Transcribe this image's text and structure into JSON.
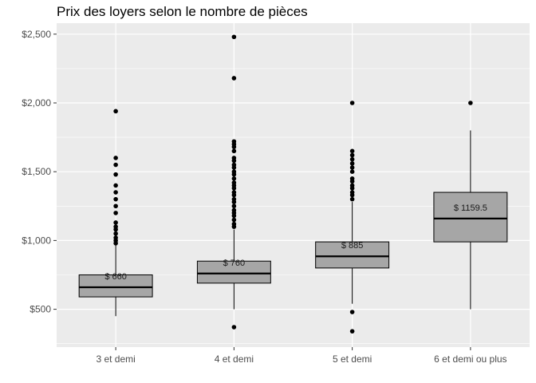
{
  "chart_data": {
    "type": "boxplot",
    "title": "Prix des loyers selon le nombre de pièces",
    "xlabel": "",
    "ylabel": "",
    "ylim": [
      225,
      2580
    ],
    "y_ticks": [
      500,
      1000,
      1500,
      2000,
      2500
    ],
    "y_tick_labels": [
      "$500",
      "$1,000",
      "$1,500",
      "$2,000",
      "$2,500"
    ],
    "grid": true,
    "box_fill": "#a6a6a6",
    "panel_background": "#ebebeb",
    "categories": [
      "3 et demi",
      "4 et demi",
      "5 et demi",
      "6 et demi ou plus"
    ],
    "boxes": [
      {
        "label": "$ 660",
        "q1": 590,
        "median": 660,
        "q3": 750,
        "whisker_low": 450,
        "whisker_high": 970,
        "outliers": [
          980,
          1000,
          1020,
          1050,
          1080,
          1100,
          1130,
          1200,
          1250,
          1300,
          1350,
          1400,
          1480,
          1550,
          1600,
          1940
        ]
      },
      {
        "label": "$ 760",
        "q1": 690,
        "median": 760,
        "q3": 850,
        "whisker_low": 500,
        "whisker_high": 1080,
        "outliers": [
          370,
          1100,
          1120,
          1150,
          1180,
          1200,
          1220,
          1250,
          1280,
          1300,
          1330,
          1350,
          1380,
          1400,
          1420,
          1450,
          1480,
          1500,
          1530,
          1550,
          1580,
          1600,
          1650,
          1680,
          1700,
          1720,
          2180,
          2480
        ]
      },
      {
        "label": "$ 885",
        "q1": 800,
        "median": 885,
        "q3": 990,
        "whisker_low": 540,
        "whisker_high": 1280,
        "outliers": [
          340,
          480,
          1300,
          1330,
          1350,
          1380,
          1400,
          1430,
          1450,
          1500,
          1530,
          1560,
          1590,
          1620,
          1650,
          2000
        ]
      },
      {
        "label": "$ 1159.5",
        "q1": 990,
        "median": 1159.5,
        "q3": 1350,
        "whisker_low": 500,
        "whisker_high": 1800,
        "outliers": [
          2000
        ]
      }
    ]
  }
}
